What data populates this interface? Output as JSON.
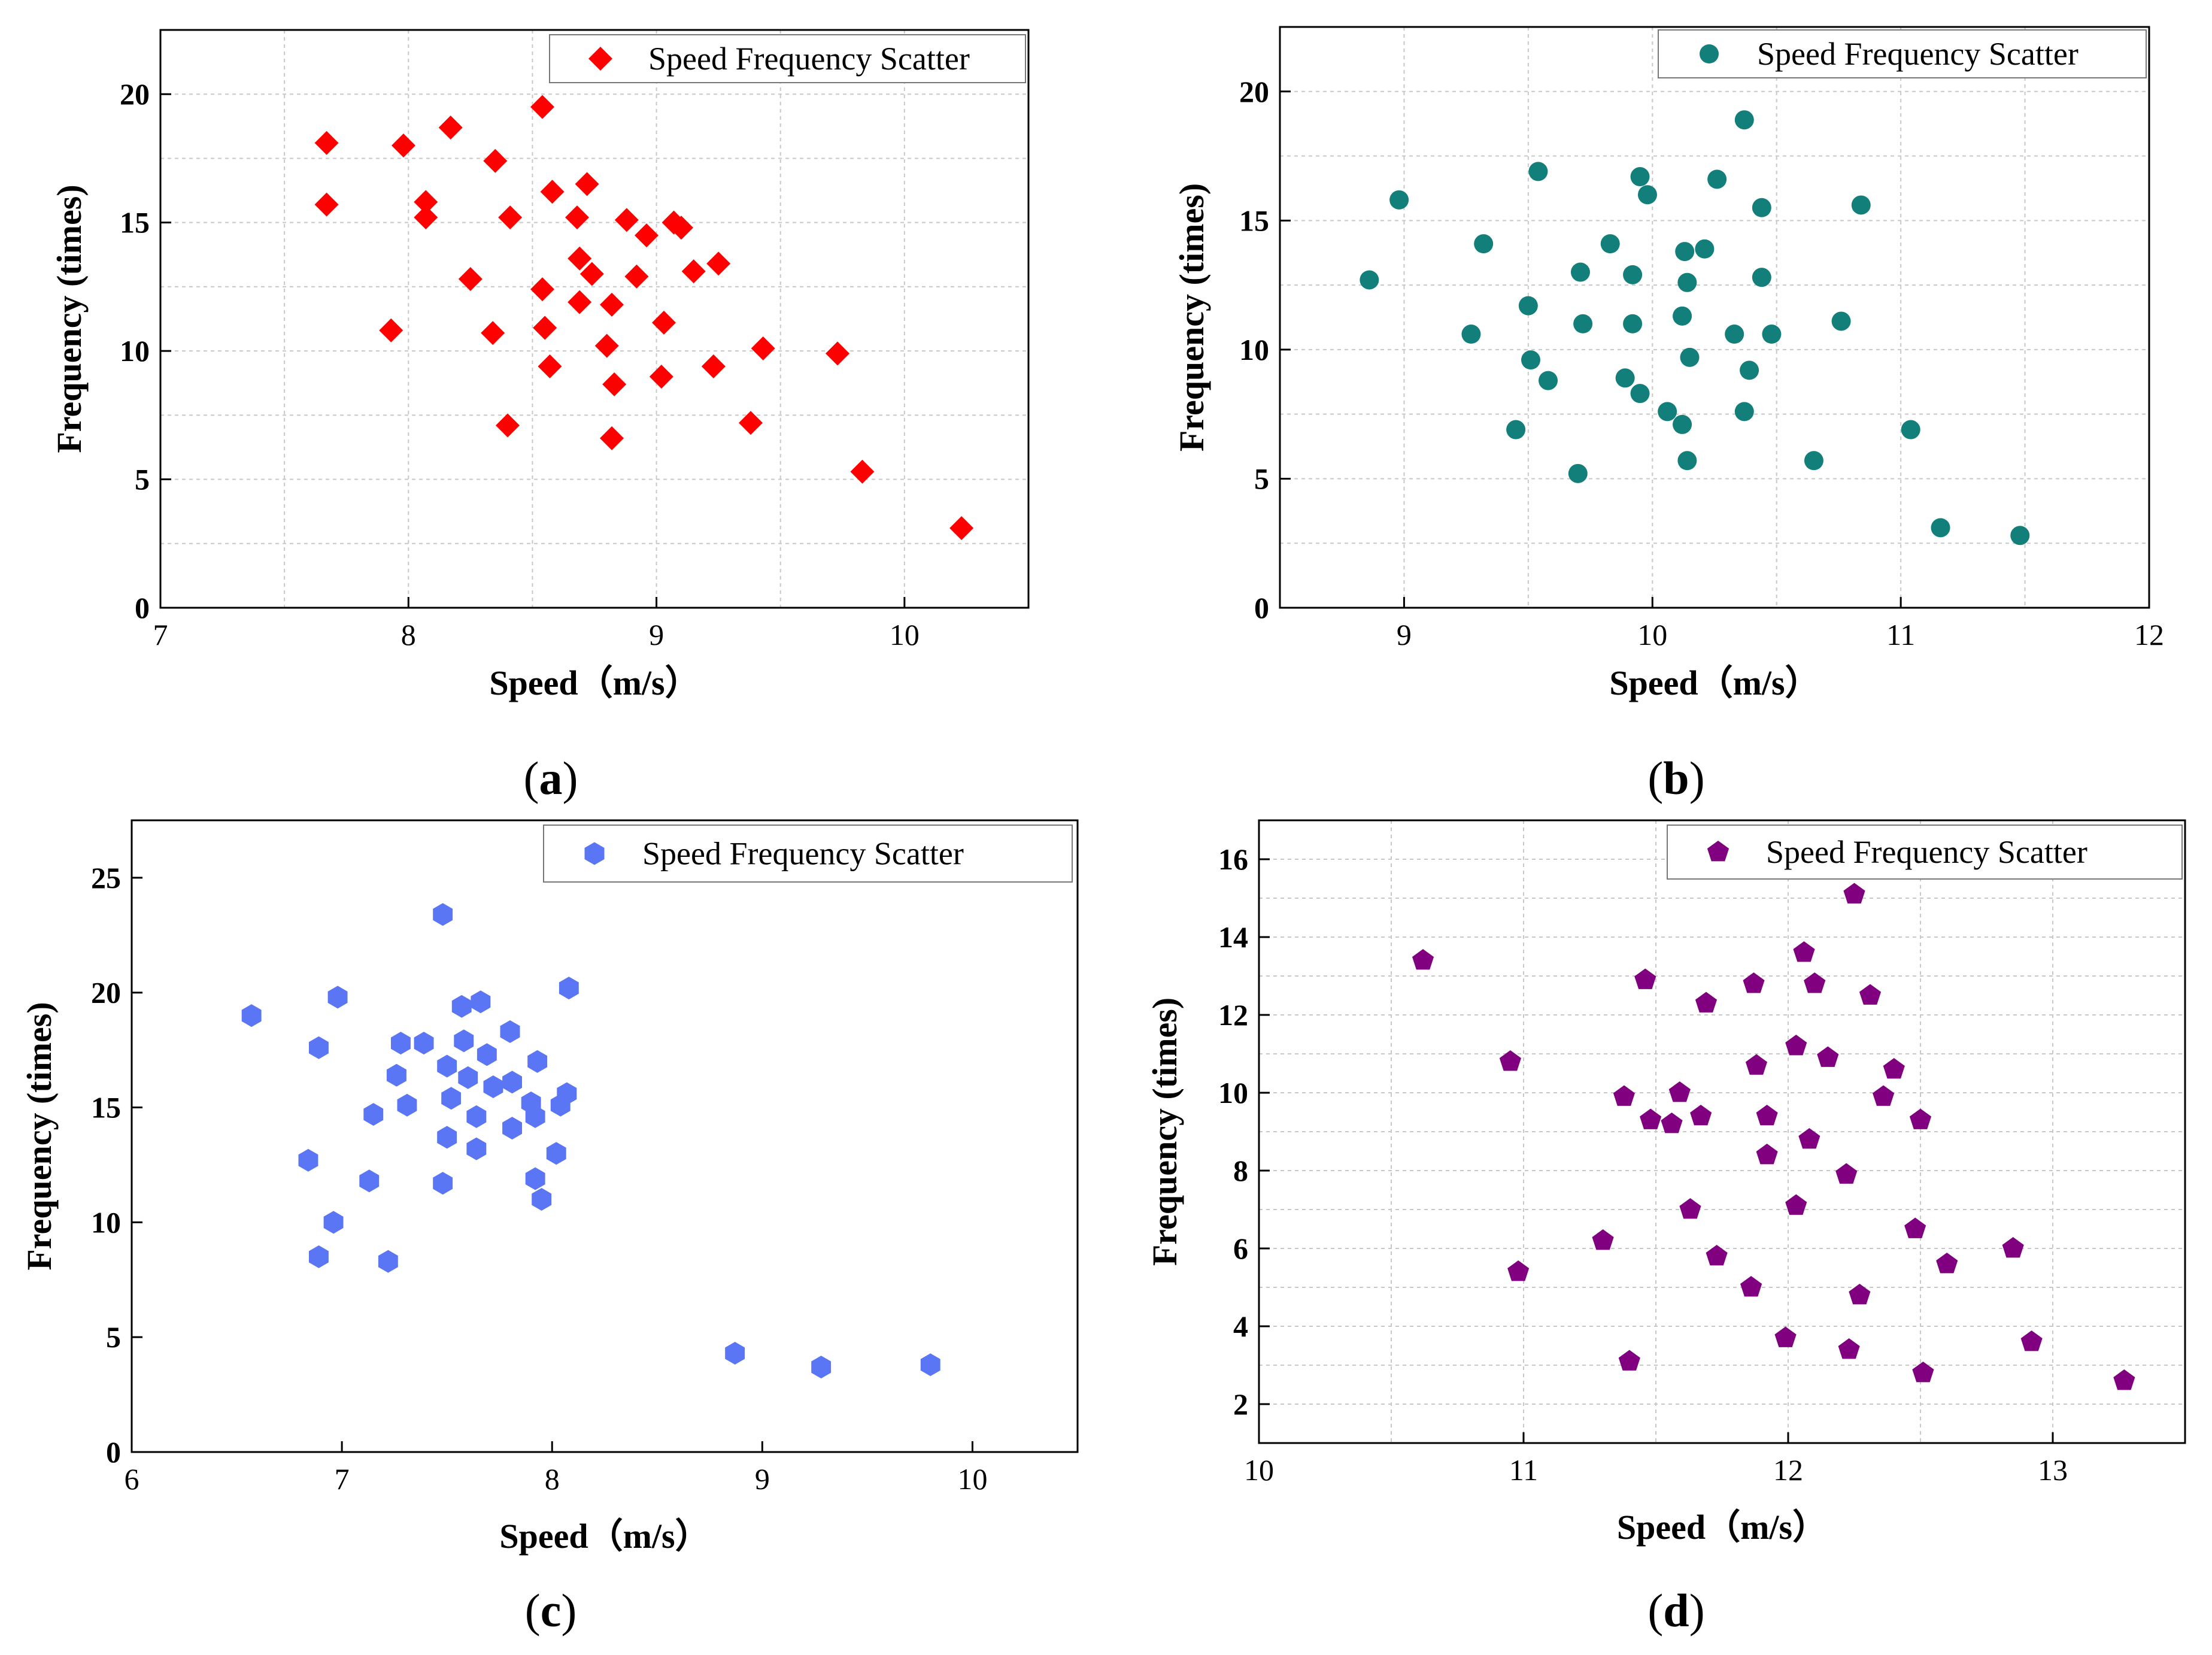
{
  "captions": {
    "a": "a",
    "b": "b",
    "c": "c",
    "d": "d"
  },
  "chart_data": [
    {
      "id": "a",
      "type": "scatter",
      "title": "",
      "xlabel": "Speed（m/s）",
      "ylabel": "Frequency (times)",
      "xlim": [
        7,
        10.5
      ],
      "ylim": [
        0,
        22.5
      ],
      "xticks": [
        7,
        8,
        9,
        10
      ],
      "yticks": [
        0,
        5,
        10,
        15,
        20
      ],
      "grid": true,
      "legend": {
        "position": "top-right",
        "label": "Speed Frequency Scatter"
      },
      "marker": "diamond",
      "color": "#ff0000",
      "series": [
        {
          "name": "Speed Frequency Scatter",
          "points": [
            [
              7.67,
              18.1
            ],
            [
              7.67,
              15.7
            ],
            [
              7.98,
              18.0
            ],
            [
              8.17,
              18.7
            ],
            [
              8.07,
              15.8
            ],
            [
              8.07,
              15.2
            ],
            [
              7.93,
              10.8
            ],
            [
              8.25,
              12.8
            ],
            [
              8.35,
              17.4
            ],
            [
              8.34,
              10.7
            ],
            [
              8.41,
              15.2
            ],
            [
              8.4,
              7.1
            ],
            [
              8.54,
              19.5
            ],
            [
              8.58,
              16.2
            ],
            [
              8.54,
              12.4
            ],
            [
              8.55,
              10.9
            ],
            [
              8.57,
              9.4
            ],
            [
              8.72,
              16.5
            ],
            [
              8.68,
              15.2
            ],
            [
              8.69,
              13.6
            ],
            [
              8.74,
              13.0
            ],
            [
              8.69,
              11.9
            ],
            [
              8.8,
              10.2
            ],
            [
              8.82,
              11.8
            ],
            [
              8.83,
              8.7
            ],
            [
              8.82,
              6.6
            ],
            [
              8.88,
              15.1
            ],
            [
              8.92,
              12.9
            ],
            [
              8.96,
              14.5
            ],
            [
              9.07,
              15.0
            ],
            [
              9.1,
              14.8
            ],
            [
              9.15,
              13.1
            ],
            [
              9.25,
              13.4
            ],
            [
              9.03,
              11.1
            ],
            [
              9.02,
              9.0
            ],
            [
              9.23,
              9.4
            ],
            [
              9.43,
              10.1
            ],
            [
              9.38,
              7.2
            ],
            [
              9.73,
              9.9
            ],
            [
              9.83,
              5.3
            ],
            [
              10.23,
              3.1
            ]
          ]
        }
      ]
    },
    {
      "id": "b",
      "type": "scatter",
      "title": "",
      "xlabel": "Speed（m/s）",
      "ylabel": "Frequency (times)",
      "xlim": [
        8.5,
        12
      ],
      "ylim": [
        0,
        22.5
      ],
      "xticks": [
        9,
        10,
        11,
        12
      ],
      "yticks": [
        0,
        5,
        10,
        15,
        20
      ],
      "grid": true,
      "legend": {
        "position": "top-right",
        "label": "Speed Frequency Scatter"
      },
      "marker": "circle",
      "color": "#137f7a",
      "series": [
        {
          "name": "Speed Frequency Scatter",
          "points": [
            [
              8.86,
              12.7
            ],
            [
              8.98,
              15.8
            ],
            [
              9.27,
              10.6
            ],
            [
              9.32,
              14.1
            ],
            [
              9.45,
              6.9
            ],
            [
              9.5,
              11.7
            ],
            [
              9.51,
              9.6
            ],
            [
              9.54,
              16.9
            ],
            [
              9.58,
              8.8
            ],
            [
              9.7,
              5.2
            ],
            [
              9.71,
              13.0
            ],
            [
              9.72,
              11.0
            ],
            [
              9.83,
              14.1
            ],
            [
              9.89,
              8.9
            ],
            [
              9.92,
              12.9
            ],
            [
              9.92,
              11.0
            ],
            [
              9.95,
              16.7
            ],
            [
              9.95,
              8.3
            ],
            [
              9.98,
              16.0
            ],
            [
              10.06,
              7.6
            ],
            [
              10.12,
              11.3
            ],
            [
              10.13,
              13.8
            ],
            [
              10.12,
              7.1
            ],
            [
              10.14,
              12.6
            ],
            [
              10.14,
              5.7
            ],
            [
              10.15,
              9.7
            ],
            [
              10.21,
              13.9
            ],
            [
              10.26,
              16.6
            ],
            [
              10.33,
              10.6
            ],
            [
              10.37,
              18.9
            ],
            [
              10.37,
              7.6
            ],
            [
              10.39,
              9.2
            ],
            [
              10.44,
              15.5
            ],
            [
              10.44,
              12.8
            ],
            [
              10.48,
              10.6
            ],
            [
              10.65,
              5.7
            ],
            [
              10.76,
              11.1
            ],
            [
              10.84,
              15.6
            ],
            [
              11.04,
              6.9
            ],
            [
              11.16,
              3.1
            ],
            [
              11.48,
              2.8
            ]
          ]
        }
      ]
    },
    {
      "id": "c",
      "type": "scatter",
      "title": "",
      "xlabel": "Speed（m/s）",
      "ylabel": "Frequency (times)",
      "xlim": [
        6,
        10.5
      ],
      "ylim": [
        0,
        27.5
      ],
      "xticks": [
        6,
        7,
        8,
        9,
        10
      ],
      "yticks": [
        0,
        5,
        10,
        15,
        20,
        25
      ],
      "grid": false,
      "legend": {
        "position": "top-right",
        "label": "Speed Frequency Scatter"
      },
      "marker": "hexagon",
      "color": "#5b76f5",
      "series": [
        {
          "name": "Speed Frequency Scatter",
          "points": [
            [
              6.57,
              19.0
            ],
            [
              6.84,
              12.7
            ],
            [
              6.89,
              17.6
            ],
            [
              6.89,
              8.5
            ],
            [
              6.96,
              10.0
            ],
            [
              6.98,
              19.8
            ],
            [
              7.13,
              11.8
            ],
            [
              7.15,
              14.7
            ],
            [
              7.22,
              8.3
            ],
            [
              7.26,
              16.4
            ],
            [
              7.28,
              17.8
            ],
            [
              7.31,
              15.1
            ],
            [
              7.39,
              17.8
            ],
            [
              7.48,
              23.4
            ],
            [
              7.48,
              11.7
            ],
            [
              7.5,
              16.8
            ],
            [
              7.5,
              13.7
            ],
            [
              7.52,
              15.4
            ],
            [
              7.57,
              19.4
            ],
            [
              7.58,
              17.9
            ],
            [
              7.6,
              16.3
            ],
            [
              7.64,
              14.6
            ],
            [
              7.64,
              13.2
            ],
            [
              7.66,
              19.6
            ],
            [
              7.69,
              17.3
            ],
            [
              7.72,
              15.9
            ],
            [
              7.8,
              18.3
            ],
            [
              7.81,
              16.1
            ],
            [
              7.81,
              14.1
            ],
            [
              7.9,
              15.2
            ],
            [
              7.92,
              14.6
            ],
            [
              7.92,
              11.9
            ],
            [
              7.93,
              17.0
            ],
            [
              7.95,
              11.0
            ],
            [
              8.02,
              13.0
            ],
            [
              8.04,
              15.1
            ],
            [
              8.07,
              15.6
            ],
            [
              8.08,
              20.2
            ],
            [
              8.87,
              4.3
            ],
            [
              9.28,
              3.7
            ],
            [
              9.8,
              3.8
            ]
          ]
        }
      ]
    },
    {
      "id": "d",
      "type": "scatter",
      "title": "",
      "xlabel": "Speed（m/s）",
      "ylabel": "Frequency (times)",
      "xlim": [
        10,
        13.5
      ],
      "ylim": [
        1,
        17
      ],
      "xticks": [
        10,
        11,
        12,
        13
      ],
      "yticks": [
        2,
        4,
        6,
        8,
        10,
        12,
        14,
        16
      ],
      "grid": true,
      "legend": {
        "position": "top-right",
        "label": "Speed Frequency Scatter"
      },
      "marker": "pentagon",
      "color": "#800080",
      "series": [
        {
          "name": "Speed Frequency Scatter",
          "points": [
            [
              10.62,
              13.4
            ],
            [
              10.95,
              10.8
            ],
            [
              10.98,
              5.4
            ],
            [
              11.3,
              6.2
            ],
            [
              11.38,
              9.9
            ],
            [
              11.4,
              3.1
            ],
            [
              11.46,
              12.9
            ],
            [
              11.48,
              9.3
            ],
            [
              11.56,
              9.2
            ],
            [
              11.59,
              10.0
            ],
            [
              11.63,
              7.0
            ],
            [
              11.67,
              9.4
            ],
            [
              11.69,
              12.3
            ],
            [
              11.73,
              5.8
            ],
            [
              11.86,
              5.0
            ],
            [
              11.87,
              12.8
            ],
            [
              11.88,
              10.7
            ],
            [
              11.92,
              8.4
            ],
            [
              11.92,
              9.4
            ],
            [
              11.99,
              3.7
            ],
            [
              12.03,
              11.2
            ],
            [
              12.03,
              7.1
            ],
            [
              12.06,
              13.6
            ],
            [
              12.08,
              8.8
            ],
            [
              12.1,
              12.8
            ],
            [
              12.15,
              10.9
            ],
            [
              12.22,
              7.9
            ],
            [
              12.23,
              3.4
            ],
            [
              12.25,
              15.1
            ],
            [
              12.27,
              4.8
            ],
            [
              12.31,
              12.5
            ],
            [
              12.36,
              9.9
            ],
            [
              12.4,
              10.6
            ],
            [
              12.48,
              6.5
            ],
            [
              12.5,
              9.3
            ],
            [
              12.51,
              2.8
            ],
            [
              12.6,
              5.6
            ],
            [
              12.85,
              6.0
            ],
            [
              12.92,
              3.6
            ],
            [
              13.27,
              2.6
            ]
          ]
        }
      ]
    }
  ]
}
